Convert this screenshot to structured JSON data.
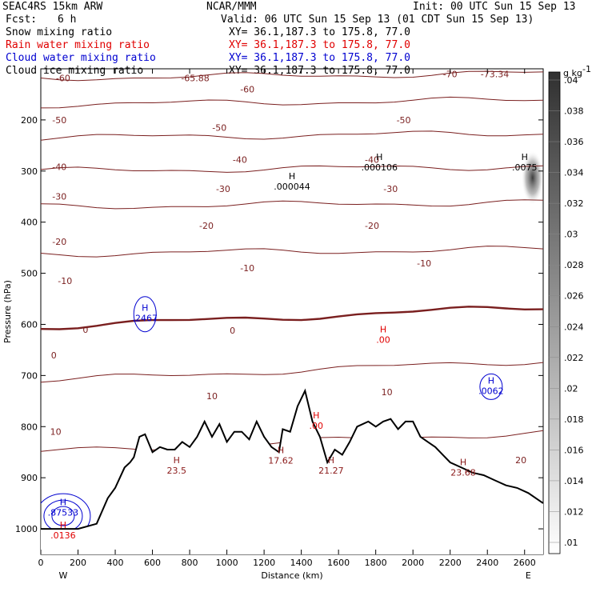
{
  "header": {
    "model": "SEAC4RS 15km ARW",
    "center": "NCAR/MMM",
    "init": "Init: 00 UTC Sun 15 Sep 13",
    "fcst_label": "Fcst:",
    "fcst_value": "6 h",
    "valid": "Valid: 06 UTC Sun 15 Sep 13 (01 CDT Sun 15 Sep 13)",
    "fields": [
      {
        "name": "Snow mixing ratio",
        "color": "#000000",
        "xy": "XY=  36.1,187.3 to 175.8, 77.0"
      },
      {
        "name": "Rain water mixing ratio",
        "color": "#e00000",
        "xy": "XY=  36.1,187.3 to 175.8, 77.0"
      },
      {
        "name": "Cloud water mixing ratio",
        "color": "#0000d0",
        "xy": "XY=  36.1,187.3 to 175.8, 77.0"
      },
      {
        "name": "Cloud ice mixing ratio",
        "color": "#000000",
        "xy": "XY=  36.1,187.3 to 175.8, 77.0"
      }
    ]
  },
  "chart_data": {
    "type": "contour cross-section",
    "xlabel": "Distance (km)",
    "ylabel": "Pressure (hPa)",
    "xlim": [
      0,
      2700
    ],
    "ylim": [
      1050,
      100
    ],
    "xticks": [
      0,
      200,
      400,
      600,
      800,
      1000,
      1200,
      1400,
      1600,
      1800,
      2000,
      2200,
      2400,
      2600
    ],
    "yticks": [
      200,
      300,
      400,
      500,
      600,
      700,
      800,
      900,
      1000
    ],
    "x_end_labels": {
      "left": "W",
      "right": "E"
    },
    "temperature_contours": [
      {
        "level": -60,
        "p": 118
      },
      {
        "level": -50,
        "p": 170
      },
      {
        "level": -40,
        "p": 235
      },
      {
        "level": -30,
        "p": 300
      },
      {
        "level": -20,
        "p": 370
      },
      {
        "level": -10,
        "p": 462
      },
      {
        "level": 0,
        "p": 605
      },
      {
        "level": 10,
        "p": 710
      },
      {
        "level": 20,
        "p": 850
      }
    ],
    "temperature_labels": [
      {
        "text": "-60",
        "x": 120,
        "p": 118
      },
      {
        "text": "-65.88",
        "x": 830,
        "p": 118
      },
      {
        "text": "-60",
        "x": 1110,
        "p": 140
      },
      {
        "text": "-70",
        "x": 2200,
        "p": 110
      },
      {
        "text": "-73.34",
        "x": 2440,
        "p": 110
      },
      {
        "text": "-50",
        "x": 100,
        "p": 200
      },
      {
        "text": "-50",
        "x": 960,
        "p": 215
      },
      {
        "text": "-50",
        "x": 1950,
        "p": 200
      },
      {
        "text": "-40",
        "x": 100,
        "p": 292
      },
      {
        "text": "-40",
        "x": 1070,
        "p": 278
      },
      {
        "text": "-40",
        "x": 1780,
        "p": 278
      },
      {
        "text": "-30",
        "x": 100,
        "p": 350
      },
      {
        "text": "-30",
        "x": 980,
        "p": 335
      },
      {
        "text": "-30",
        "x": 1880,
        "p": 335
      },
      {
        "text": "-20",
        "x": 100,
        "p": 438
      },
      {
        "text": "-20",
        "x": 890,
        "p": 407
      },
      {
        "text": "-20",
        "x": 1780,
        "p": 407
      },
      {
        "text": "-10",
        "x": 130,
        "p": 515
      },
      {
        "text": "-10",
        "x": 1110,
        "p": 490
      },
      {
        "text": "-10",
        "x": 2060,
        "p": 480
      },
      {
        "text": "0",
        "x": 70,
        "p": 660
      },
      {
        "text": "0",
        "x": 240,
        "p": 610
      },
      {
        "text": "0",
        "x": 1030,
        "p": 612
      },
      {
        "text": "10",
        "x": 80,
        "p": 810
      },
      {
        "text": "10",
        "x": 920,
        "p": 740
      },
      {
        "text": "10",
        "x": 1860,
        "p": 732
      },
      {
        "text": "20",
        "x": 2580,
        "p": 865
      }
    ],
    "maxima": [
      {
        "mark": "H",
        "value": ".000044",
        "x": 1350,
        "p": 322,
        "color": "#000000"
      },
      {
        "mark": "H",
        "value": ".000106",
        "x": 1820,
        "p": 285,
        "color": "#000000"
      },
      {
        "mark": "H",
        "value": ".0075",
        "x": 2600,
        "p": 285,
        "color": "#000000"
      },
      {
        "mark": "H",
        "value": ".2467",
        "x": 560,
        "p": 580,
        "color": "#0000d0"
      },
      {
        "mark": "H",
        "value": ".0062",
        "x": 2420,
        "p": 722,
        "color": "#0000d0"
      },
      {
        "mark": "H",
        "value": ".00",
        "x": 1840,
        "p": 622,
        "color": "#e00000"
      },
      {
        "mark": "H",
        "value": ".87533",
        "x": 120,
        "p": 960,
        "color": "#0000d0"
      },
      {
        "mark": "H",
        "value": ".0136",
        "x": 120,
        "p": 1005,
        "color": "#e00000"
      },
      {
        "mark": "H",
        "value": ".00",
        "x": 1480,
        "p": 790,
        "color": "#e00000"
      },
      {
        "mark": "H",
        "value": "17.62",
        "x": 1290,
        "p": 858,
        "color": "#8b1a1a"
      },
      {
        "mark": "H",
        "value": "23.5",
        "x": 730,
        "p": 878,
        "color": "#8b1a1a"
      },
      {
        "mark": "H",
        "value": "21.27",
        "x": 1560,
        "p": 878,
        "color": "#8b1a1a"
      },
      {
        "mark": "H",
        "value": "23.68",
        "x": 2270,
        "p": 882,
        "color": "#8b1a1a"
      }
    ],
    "terrain_p": [
      [
        0,
        1000
      ],
      [
        80,
        1000
      ],
      [
        200,
        1000
      ],
      [
        300,
        990
      ],
      [
        360,
        940
      ],
      [
        400,
        920
      ],
      [
        450,
        880
      ],
      [
        480,
        870
      ],
      [
        500,
        860
      ],
      [
        530,
        820
      ],
      [
        560,
        815
      ],
      [
        600,
        850
      ],
      [
        640,
        840
      ],
      [
        680,
        845
      ],
      [
        720,
        845
      ],
      [
        760,
        830
      ],
      [
        800,
        840
      ],
      [
        840,
        820
      ],
      [
        880,
        790
      ],
      [
        920,
        820
      ],
      [
        960,
        795
      ],
      [
        1000,
        830
      ],
      [
        1040,
        810
      ],
      [
        1080,
        810
      ],
      [
        1120,
        825
      ],
      [
        1160,
        790
      ],
      [
        1200,
        820
      ],
      [
        1240,
        840
      ],
      [
        1280,
        850
      ],
      [
        1300,
        805
      ],
      [
        1340,
        810
      ],
      [
        1380,
        760
      ],
      [
        1420,
        730
      ],
      [
        1460,
        790
      ],
      [
        1500,
        820
      ],
      [
        1540,
        870
      ],
      [
        1580,
        845
      ],
      [
        1620,
        855
      ],
      [
        1660,
        830
      ],
      [
        1700,
        800
      ],
      [
        1760,
        790
      ],
      [
        1800,
        800
      ],
      [
        1840,
        790
      ],
      [
        1880,
        785
      ],
      [
        1920,
        805
      ],
      [
        1960,
        790
      ],
      [
        2000,
        790
      ],
      [
        2040,
        820
      ],
      [
        2080,
        830
      ],
      [
        2120,
        840
      ],
      [
        2160,
        855
      ],
      [
        2200,
        870
      ],
      [
        2260,
        880
      ],
      [
        2320,
        890
      ],
      [
        2380,
        895
      ],
      [
        2440,
        905
      ],
      [
        2500,
        915
      ],
      [
        2560,
        920
      ],
      [
        2620,
        930
      ],
      [
        2700,
        950
      ]
    ],
    "colorbar": {
      "unit": "g kg",
      "unit_exp": "-1",
      "ticks": [
        ".01",
        ".012",
        ".014",
        ".016",
        ".018",
        ".02",
        ".022",
        ".024",
        ".026",
        ".028",
        ".03",
        ".032",
        ".034",
        ".036",
        ".038",
        ".04"
      ],
      "color_low": "#ffffff",
      "color_high": "#303030"
    }
  }
}
